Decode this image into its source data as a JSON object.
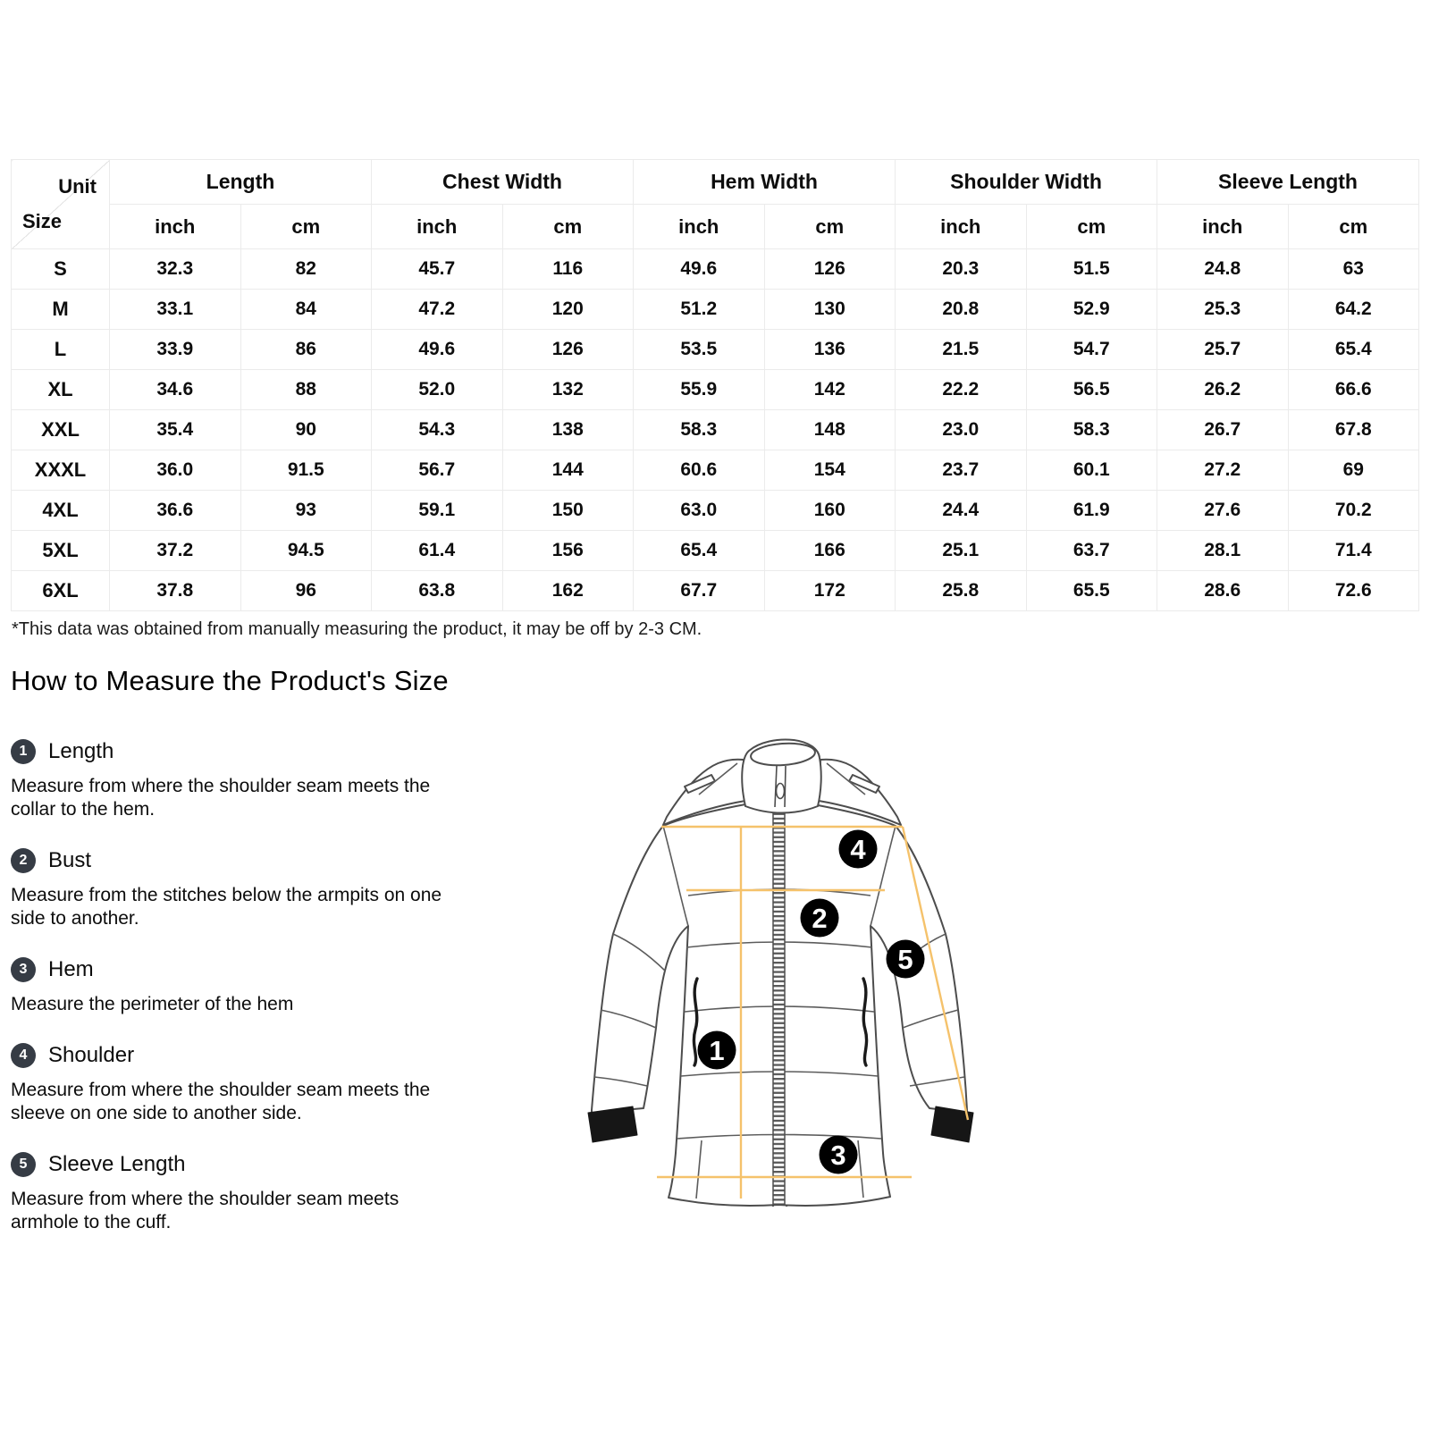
{
  "table": {
    "corner_top": "Unit",
    "corner_bottom": "Size",
    "groups": [
      {
        "label": "Length"
      },
      {
        "label": "Chest Width"
      },
      {
        "label": "Hem Width"
      },
      {
        "label": "Shoulder Width"
      },
      {
        "label": "Sleeve Length"
      }
    ],
    "unit_headers": [
      "inch",
      "cm",
      "inch",
      "cm",
      "inch",
      "cm",
      "inch",
      "cm",
      "inch",
      "cm"
    ],
    "rows": [
      {
        "size": "S",
        "values": [
          "32.3",
          "82",
          "45.7",
          "116",
          "49.6",
          "126",
          "20.3",
          "51.5",
          "24.8",
          "63"
        ]
      },
      {
        "size": "M",
        "values": [
          "33.1",
          "84",
          "47.2",
          "120",
          "51.2",
          "130",
          "20.8",
          "52.9",
          "25.3",
          "64.2"
        ]
      },
      {
        "size": "L",
        "values": [
          "33.9",
          "86",
          "49.6",
          "126",
          "53.5",
          "136",
          "21.5",
          "54.7",
          "25.7",
          "65.4"
        ]
      },
      {
        "size": "XL",
        "values": [
          "34.6",
          "88",
          "52.0",
          "132",
          "55.9",
          "142",
          "22.2",
          "56.5",
          "26.2",
          "66.6"
        ]
      },
      {
        "size": "XXL",
        "values": [
          "35.4",
          "90",
          "54.3",
          "138",
          "58.3",
          "148",
          "23.0",
          "58.3",
          "26.7",
          "67.8"
        ]
      },
      {
        "size": "XXXL",
        "values": [
          "36.0",
          "91.5",
          "56.7",
          "144",
          "60.6",
          "154",
          "23.7",
          "60.1",
          "27.2",
          "69"
        ]
      },
      {
        "size": "4XL",
        "values": [
          "36.6",
          "93",
          "59.1",
          "150",
          "63.0",
          "160",
          "24.4",
          "61.9",
          "27.6",
          "70.2"
        ]
      },
      {
        "size": "5XL",
        "values": [
          "37.2",
          "94.5",
          "61.4",
          "156",
          "65.4",
          "166",
          "25.1",
          "63.7",
          "28.1",
          "71.4"
        ]
      },
      {
        "size": "6XL",
        "values": [
          "37.8",
          "96",
          "63.8",
          "162",
          "67.7",
          "172",
          "25.8",
          "65.5",
          "28.6",
          "72.6"
        ]
      }
    ],
    "note": "*This data was obtained from manually measuring the product, it may be off by 2-3 CM."
  },
  "guide": {
    "title": "How to Measure the Product's Size",
    "items": [
      {
        "num": "1",
        "label": "Length",
        "desc": "Measure from where the shoulder seam meets the\ncollar to the hem."
      },
      {
        "num": "2",
        "label": "Bust",
        "desc": "Measure from the stitches below the armpits on one\nside to another."
      },
      {
        "num": "3",
        "label": "Hem",
        "desc": "Measure the perimeter of the hem"
      },
      {
        "num": "4",
        "label": "Shoulder",
        "desc": "Measure from where the shoulder seam meets the\nsleeve on one side to another side."
      },
      {
        "num": "5",
        "label": "Sleeve Length",
        "desc": "Measure from where the shoulder seam meets\narmhole to the cuff."
      }
    ]
  },
  "diagram": {
    "badges": [
      "1",
      "2",
      "3",
      "4",
      "5"
    ],
    "line_color": "#F5C26B",
    "badge_color": "#000000",
    "outline_color": "#4d4d4d",
    "list_badge_color": "#363c45"
  }
}
